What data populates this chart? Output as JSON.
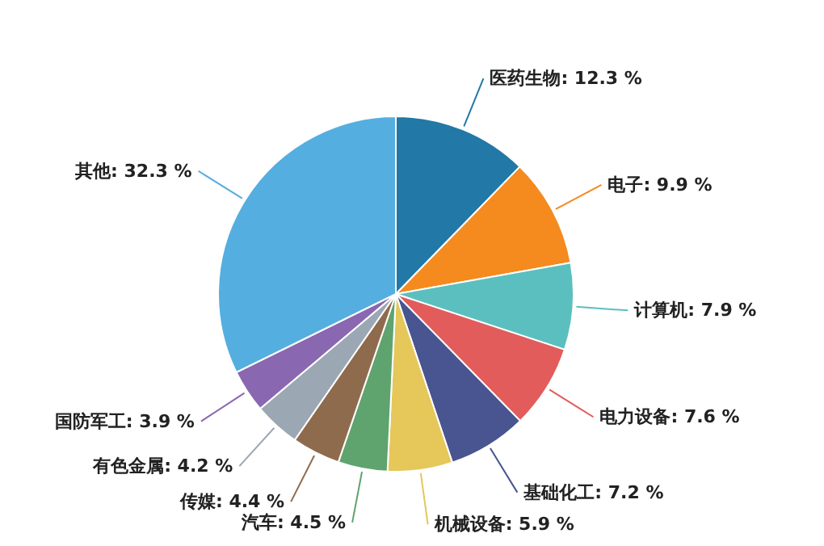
{
  "chart_data": {
    "type": "pie",
    "categories": [
      "医药生物",
      "电子",
      "计算机",
      "电力设备",
      "基础化工",
      "机械设备",
      "汽车",
      "传媒",
      "有色金属",
      "国防军工",
      "其他"
    ],
    "values": [
      12.3,
      9.9,
      7.9,
      7.6,
      7.2,
      5.9,
      4.5,
      4.4,
      4.2,
      3.9,
      32.3
    ],
    "value_labels": [
      "12.3 %",
      "9.9 %",
      "7.9 %",
      "7.6 %",
      "7.2 %",
      "5.9 %",
      "4.5 %",
      "4.4 %",
      "4.2 %",
      "3.9 %",
      "32.3 %"
    ],
    "colors": [
      "#2278a6",
      "#f58a1f",
      "#5bbfbf",
      "#e25c5c",
      "#485590",
      "#e5c75a",
      "#5fa36e",
      "#8f6b4d",
      "#9ba7b3",
      "#8a67b1",
      "#55aee0"
    ],
    "legend": false
  }
}
